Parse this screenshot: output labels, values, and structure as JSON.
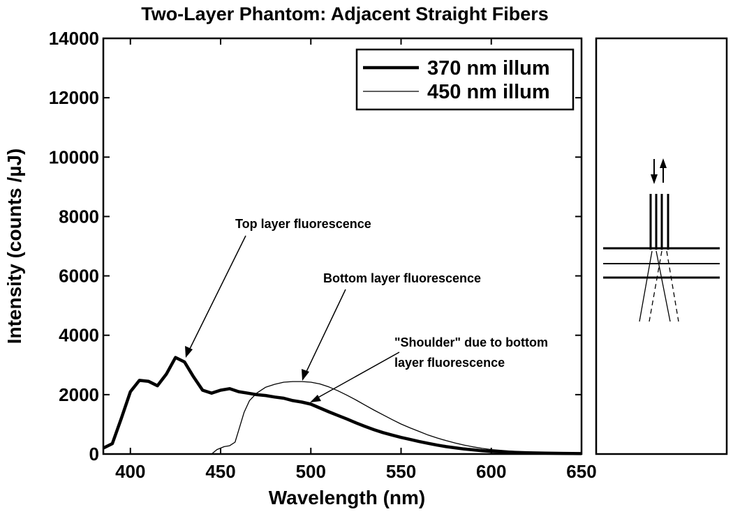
{
  "chart_data": {
    "type": "line",
    "title": "Two-Layer Phantom:  Adjacent Straight Fibers",
    "xlabel": "Wavelength (nm)",
    "ylabel": "Intensity (counts /µJ)",
    "xlim": [
      385,
      650
    ],
    "ylim": [
      0,
      14000
    ],
    "x_ticks": [
      400,
      450,
      500,
      550,
      600,
      650
    ],
    "y_ticks": [
      0,
      2000,
      4000,
      6000,
      8000,
      10000,
      12000,
      14000
    ],
    "x_tick_labels": [
      "400",
      "450",
      "500",
      "550",
      "600",
      "650"
    ],
    "y_tick_labels": [
      "0",
      "2000",
      "4000",
      "6000",
      "8000",
      "10000",
      "12000",
      "14000"
    ],
    "grid": false,
    "legend_position": "top-right",
    "series": [
      {
        "name": "370 nm illum",
        "style": "thick",
        "points": [
          [
            385,
            200
          ],
          [
            390,
            350
          ],
          [
            395,
            1200
          ],
          [
            400,
            2100
          ],
          [
            405,
            2480
          ],
          [
            410,
            2450
          ],
          [
            415,
            2300
          ],
          [
            420,
            2700
          ],
          [
            425,
            3250
          ],
          [
            430,
            3100
          ],
          [
            435,
            2600
          ],
          [
            440,
            2150
          ],
          [
            445,
            2050
          ],
          [
            450,
            2150
          ],
          [
            455,
            2200
          ],
          [
            460,
            2100
          ],
          [
            465,
            2050
          ],
          [
            470,
            2000
          ],
          [
            475,
            1970
          ],
          [
            480,
            1920
          ],
          [
            485,
            1880
          ],
          [
            490,
            1800
          ],
          [
            495,
            1750
          ],
          [
            500,
            1680
          ],
          [
            505,
            1550
          ],
          [
            510,
            1420
          ],
          [
            515,
            1300
          ],
          [
            520,
            1180
          ],
          [
            525,
            1050
          ],
          [
            530,
            930
          ],
          [
            535,
            820
          ],
          [
            540,
            720
          ],
          [
            545,
            640
          ],
          [
            550,
            560
          ],
          [
            555,
            490
          ],
          [
            560,
            420
          ],
          [
            565,
            360
          ],
          [
            570,
            300
          ],
          [
            575,
            250
          ],
          [
            580,
            210
          ],
          [
            585,
            170
          ],
          [
            590,
            140
          ],
          [
            595,
            110
          ],
          [
            600,
            90
          ],
          [
            610,
            60
          ],
          [
            620,
            40
          ],
          [
            630,
            30
          ],
          [
            640,
            20
          ],
          [
            650,
            15
          ]
        ]
      },
      {
        "name": "450 nm illum",
        "style": "thin",
        "points": [
          [
            445,
            0
          ],
          [
            448,
            150
          ],
          [
            452,
            250
          ],
          [
            455,
            280
          ],
          [
            458,
            400
          ],
          [
            460,
            800
          ],
          [
            463,
            1400
          ],
          [
            466,
            1800
          ],
          [
            470,
            2050
          ],
          [
            475,
            2250
          ],
          [
            480,
            2350
          ],
          [
            485,
            2420
          ],
          [
            490,
            2440
          ],
          [
            495,
            2440
          ],
          [
            500,
            2420
          ],
          [
            505,
            2360
          ],
          [
            510,
            2260
          ],
          [
            515,
            2130
          ],
          [
            520,
            1980
          ],
          [
            525,
            1820
          ],
          [
            530,
            1650
          ],
          [
            535,
            1480
          ],
          [
            540,
            1320
          ],
          [
            545,
            1160
          ],
          [
            550,
            1010
          ],
          [
            555,
            880
          ],
          [
            560,
            760
          ],
          [
            565,
            640
          ],
          [
            570,
            540
          ],
          [
            575,
            450
          ],
          [
            580,
            370
          ],
          [
            585,
            300
          ],
          [
            590,
            240
          ],
          [
            595,
            190
          ],
          [
            600,
            150
          ],
          [
            610,
            100
          ],
          [
            620,
            60
          ],
          [
            630,
            40
          ],
          [
            640,
            25
          ],
          [
            650,
            15
          ]
        ]
      }
    ],
    "annotations": [
      {
        "lines": [
          "Top layer fluorescence"
        ],
        "arrow_to": [
          427,
          3250
        ]
      },
      {
        "lines": [
          "Bottom layer fluorescence"
        ],
        "arrow_to": [
          492,
          2460
        ]
      },
      {
        "lines": [
          "\"Shoulder\" due to bottom",
          "layer fluorescence"
        ],
        "arrow_to": [
          488,
          1780
        ]
      }
    ],
    "side_panel": "fiber-geometry-schematic"
  }
}
